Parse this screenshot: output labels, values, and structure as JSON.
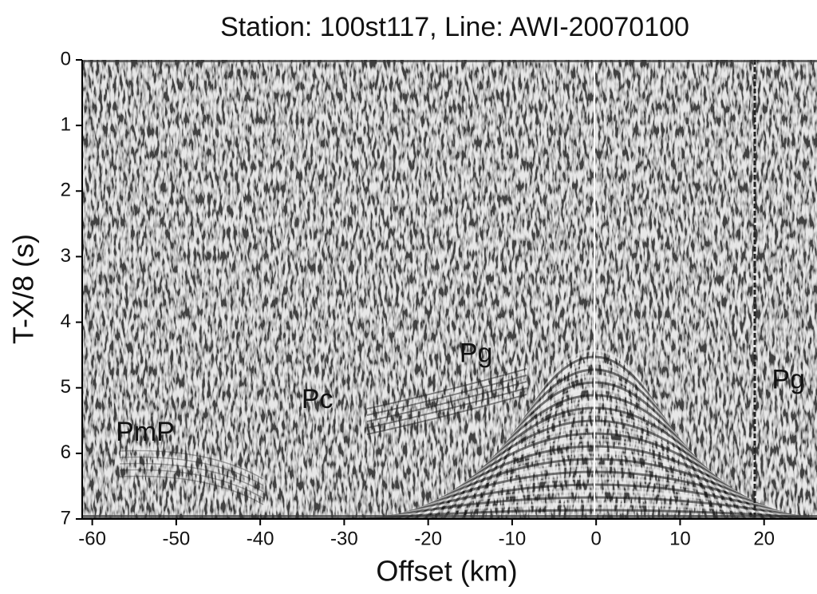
{
  "chart_data": {
    "type": "seismic",
    "title": "Station: 100st117, Line: AWI-20070100",
    "x_label": "Offset (km)",
    "y_label": "T-X/8 (s)",
    "xlim": [
      -61.2,
      26.3
    ],
    "ylim": [
      0,
      7
    ],
    "y_inverted": true,
    "xticks": [
      -60,
      -50,
      -40,
      -30,
      -20,
      -10,
      0,
      10,
      20
    ],
    "yticks": [
      0,
      1,
      2,
      3,
      4,
      5,
      6,
      7
    ],
    "annotations": [
      {
        "text": "PmP",
        "x": -53.7,
        "y": 5.7
      },
      {
        "text": "Pc",
        "x": -33.2,
        "y": 5.2
      },
      {
        "text": "Pg",
        "x": -14.3,
        "y": 4.5
      },
      {
        "text": "Pg",
        "x": 22.9,
        "y": 4.9
      }
    ]
  }
}
